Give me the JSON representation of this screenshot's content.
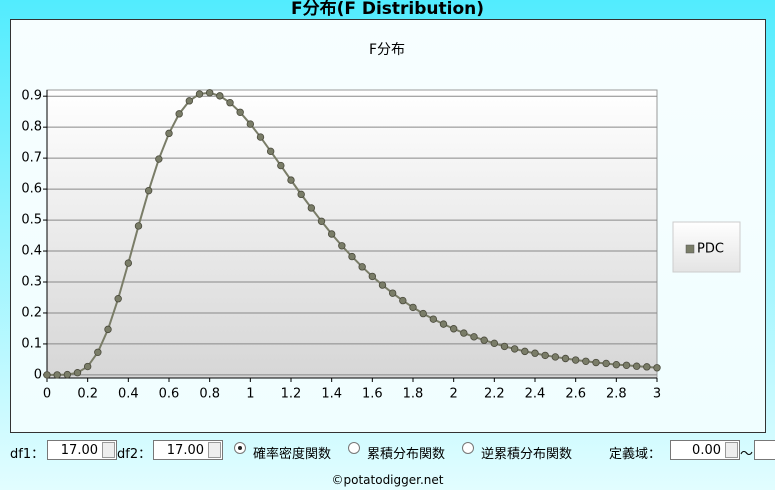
{
  "header": {
    "title": "F分布(F Distribution)"
  },
  "chart_data": {
    "type": "line",
    "title": "F分布",
    "x": [
      0,
      0.05,
      0.1,
      0.15,
      0.2,
      0.25,
      0.3,
      0.35,
      0.4,
      0.45,
      0.5,
      0.55,
      0.6,
      0.65,
      0.7,
      0.75,
      0.8,
      0.85,
      0.9,
      0.95,
      1,
      1.05,
      1.1,
      1.15,
      1.2,
      1.25,
      1.3,
      1.35,
      1.4,
      1.45,
      1.5,
      1.55,
      1.6,
      1.65,
      1.7,
      1.75,
      1.8,
      1.85,
      1.9,
      1.95,
      2,
      2.05,
      2.1,
      2.15,
      2.2,
      2.25,
      2.3,
      2.35,
      2.4,
      2.45,
      2.5,
      2.55,
      2.6,
      2.65,
      2.7,
      2.75,
      2.8,
      2.85,
      2.9,
      2.95,
      3
    ],
    "series": [
      {
        "name": "PDC",
        "color": "#7a7d68",
        "values": [
          0,
          0,
          0.001,
          0.007,
          0.027,
          0.073,
          0.147,
          0.246,
          0.361,
          0.481,
          0.595,
          0.697,
          0.78,
          0.843,
          0.885,
          0.907,
          0.911,
          0.901,
          0.879,
          0.848,
          0.81,
          0.768,
          0.722,
          0.676,
          0.629,
          0.583,
          0.539,
          0.496,
          0.455,
          0.417,
          0.382,
          0.349,
          0.318,
          0.29,
          0.264,
          0.24,
          0.218,
          0.198,
          0.18,
          0.164,
          0.149,
          0.135,
          0.123,
          0.112,
          0.102,
          0.092,
          0.084,
          0.076,
          0.07,
          0.063,
          0.058,
          0.053,
          0.048,
          0.044,
          0.04,
          0.037,
          0.033,
          0.031,
          0.028,
          0.026,
          0.023
        ]
      }
    ],
    "xlim": [
      0,
      3
    ],
    "xticks": [
      0,
      0.2,
      0.4,
      0.6,
      0.8,
      1,
      1.2,
      1.4,
      1.6,
      1.8,
      2,
      2.2,
      2.4,
      2.6,
      2.8,
      3
    ],
    "ylim": [
      -0.01,
      0.92
    ],
    "yticks": [
      0,
      0.1,
      0.2,
      0.3,
      0.4,
      0.5,
      0.6,
      0.7,
      0.8,
      0.9
    ],
    "grid": true,
    "legend": "right"
  },
  "controls": {
    "df1_label": "df1：",
    "df1_value": "17.00",
    "df2_label": "df2：",
    "df2_value": "17.00",
    "modes": [
      {
        "label": "確率密度関数",
        "checked": true
      },
      {
        "label": "累積分布関数",
        "checked": false
      },
      {
        "label": "逆累積分布関数",
        "checked": false
      }
    ],
    "domain_label": "定義域：",
    "domain_from": "0.00",
    "domain_sep": "～"
  },
  "footer": "©potatodigger.net"
}
